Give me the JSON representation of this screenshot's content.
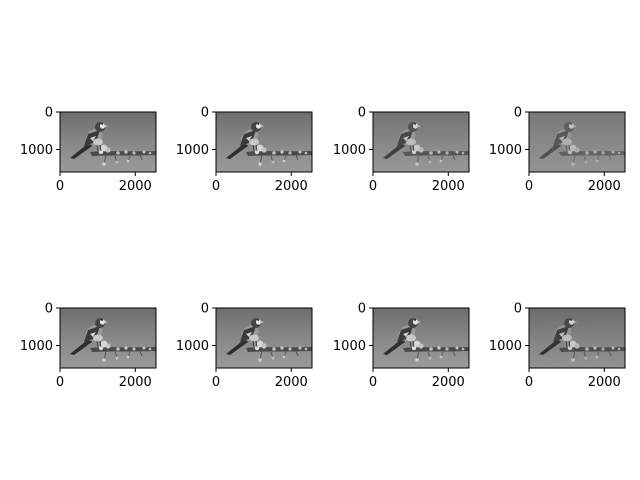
{
  "figure": {
    "background": "#ffffff",
    "grid": false
  },
  "chart_data": [
    {
      "type": "image",
      "panel": "top-1",
      "contrast": "high",
      "x_ticks": [
        0,
        2000
      ],
      "y_ticks": [
        0,
        1000
      ],
      "xlim": [
        0,
        2550
      ],
      "ylim": [
        1600,
        0
      ]
    },
    {
      "type": "image",
      "panel": "top-2",
      "contrast": "high",
      "x_ticks": [
        0,
        2000
      ],
      "y_ticks": [
        0,
        1000
      ],
      "xlim": [
        0,
        2550
      ],
      "ylim": [
        1600,
        0
      ]
    },
    {
      "type": "image",
      "panel": "top-3",
      "contrast": "medium",
      "x_ticks": [
        0,
        2000
      ],
      "y_ticks": [
        0,
        1000
      ],
      "xlim": [
        0,
        2550
      ],
      "ylim": [
        1600,
        0
      ]
    },
    {
      "type": "image",
      "panel": "top-4",
      "contrast": "low",
      "x_ticks": [
        0,
        2000
      ],
      "y_ticks": [
        0,
        1000
      ],
      "xlim": [
        0,
        2550
      ],
      "ylim": [
        1600,
        0
      ]
    },
    {
      "type": "image",
      "panel": "bottom-1",
      "contrast": "high",
      "x_ticks": [
        0,
        2000
      ],
      "y_ticks": [
        0,
        1000
      ],
      "xlim": [
        0,
        2550
      ],
      "ylim": [
        1600,
        0
      ]
    },
    {
      "type": "image",
      "panel": "bottom-2",
      "contrast": "high",
      "x_ticks": [
        0,
        2000
      ],
      "y_ticks": [
        0,
        1000
      ],
      "xlim": [
        0,
        2550
      ],
      "ylim": [
        1600,
        0
      ]
    },
    {
      "type": "image",
      "panel": "bottom-3",
      "contrast": "high",
      "x_ticks": [
        0,
        2000
      ],
      "y_ticks": [
        0,
        1000
      ],
      "xlim": [
        0,
        2550
      ],
      "ylim": [
        1600,
        0
      ]
    },
    {
      "type": "image",
      "panel": "bottom-4",
      "contrast": "noisy",
      "x_ticks": [
        0,
        2000
      ],
      "y_ticks": [
        0,
        1000
      ],
      "xlim": [
        0,
        2550
      ],
      "ylim": [
        1600,
        0
      ]
    }
  ]
}
